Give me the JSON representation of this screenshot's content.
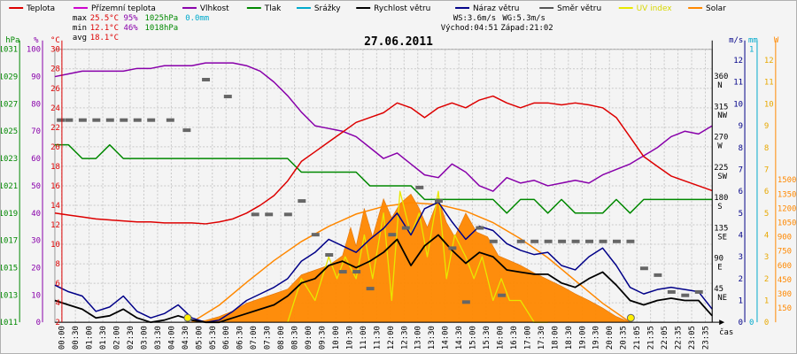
{
  "chart_data": {
    "type": "line",
    "title": "27.06.2011",
    "legend": [
      {
        "name": "Teplota",
        "color": "#dd0000"
      },
      {
        "name": "Přízemní teplota",
        "color": "#cc00cc"
      },
      {
        "name": "Vlhkost",
        "color": "#8800aa"
      },
      {
        "name": "Tlak",
        "color": "#008800"
      },
      {
        "name": "Srážky",
        "color": "#00aacc"
      },
      {
        "name": "Rychlost větru",
        "color": "#000000"
      },
      {
        "name": "Náraz větru",
        "color": "#000088"
      },
      {
        "name": "Směr větru",
        "color": "#555555"
      },
      {
        "name": "UV index",
        "color": "#e8e800"
      },
      {
        "name": "Solar",
        "color": "#ff8800"
      }
    ],
    "stats": {
      "max_label": "max",
      "max_temp": "25.5°C",
      "max_hum": "95%",
      "max_press": "1025hPa",
      "max_rain": "0.0mm",
      "min_label": "min",
      "min_temp": "12.1°C",
      "min_hum": "46%",
      "min_press": "1018hPa",
      "avg_label": "avg",
      "avg_temp": "18.1°C",
      "ws": "WS:3.6m/s",
      "wg": "WG:5.3m/s",
      "sunrise": "Východ:04:51",
      "sunset": "Západ:21:02"
    },
    "axes": {
      "hpa": {
        "unit": "hPa",
        "ticks": [
          "1011",
          "1013",
          "1015",
          "1017",
          "1019",
          "1021",
          "1023",
          "1025",
          "1027",
          "1029",
          "1031"
        ]
      },
      "pct": {
        "unit": "%",
        "ticks": [
          "0",
          "10",
          "20",
          "30",
          "40",
          "50",
          "60",
          "70",
          "80",
          "90",
          "100"
        ]
      },
      "temp": {
        "unit": "°C",
        "ticks": [
          "2",
          "4",
          "6",
          "8",
          "10",
          "12",
          "14",
          "16",
          "18",
          "20",
          "22",
          "24",
          "26",
          "28",
          "30"
        ]
      },
      "ms": {
        "unit": "m/s",
        "ticks": [
          "0",
          "1",
          "2",
          "3",
          "4",
          "5",
          "6",
          "7",
          "8",
          "9",
          "10",
          "11",
          "12"
        ]
      },
      "mm": {
        "unit": "mm",
        "ticks": [
          "0",
          "1"
        ]
      },
      "w": {
        "unit": "W",
        "ticks": [
          "150",
          "300",
          "450",
          "600",
          "750",
          "900",
          "1050",
          "1200",
          "1350",
          "1500"
        ]
      },
      "uv": {
        "ticks": [
          "0",
          "1",
          "2",
          "3",
          "4",
          "5",
          "6",
          "7",
          "8",
          "9",
          "10",
          "11",
          "12"
        ]
      },
      "dir": {
        "ticks": [
          {
            "deg": "360",
            "dir": "N",
            "v": 360
          },
          {
            "deg": "315",
            "dir": "NW",
            "v": 315
          },
          {
            "deg": "270",
            "dir": "W",
            "v": 270
          },
          {
            "deg": "225",
            "dir": "SW",
            "v": 225
          },
          {
            "deg": "180",
            "dir": "S",
            "v": 180
          },
          {
            "deg": "135",
            "dir": "SE",
            "v": 135
          },
          {
            "deg": "90",
            "dir": "E",
            "v": 90
          },
          {
            "deg": "45",
            "dir": "NE",
            "v": 45
          }
        ]
      },
      "time_label": "čas",
      "x_ticks": [
        "00:00",
        "00:30",
        "01:00",
        "01:30",
        "02:00",
        "02:30",
        "03:00",
        "03:30",
        "04:00",
        "04:30",
        "05:00",
        "05:30",
        "06:00",
        "06:30",
        "07:00",
        "07:30",
        "08:00",
        "08:30",
        "09:00",
        "09:30",
        "10:00",
        "10:30",
        "11:00",
        "11:30",
        "12:00",
        "12:30",
        "13:00",
        "13:30",
        "14:00",
        "14:30",
        "15:00",
        "15:30",
        "16:00",
        "16:30",
        "17:00",
        "17:30",
        "18:00",
        "18:30",
        "19:00",
        "19:30",
        "20:00",
        "20:35",
        "21:05",
        "21:35",
        "22:05",
        "22:35",
        "23:05",
        "23:35"
      ]
    },
    "series": {
      "teplota": {
        "x": [
          0,
          0.5,
          1,
          1.5,
          2,
          2.5,
          3,
          3.5,
          4,
          4.5,
          5,
          5.5,
          6,
          6.5,
          7,
          7.5,
          8,
          8.5,
          9,
          9.5,
          10,
          10.5,
          11,
          11.5,
          12,
          12.5,
          13,
          13.5,
          14,
          14.5,
          15,
          15.5,
          16,
          16.5,
          17,
          17.5,
          18,
          18.5,
          19,
          19.5,
          20,
          20.5,
          21,
          21.5,
          22,
          22.5,
          23,
          23.5,
          24
        ],
        "y": [
          13.2,
          13.0,
          12.8,
          12.6,
          12.5,
          12.4,
          12.3,
          12.3,
          12.2,
          12.2,
          12.2,
          12.1,
          12.3,
          12.6,
          13.2,
          14.0,
          15.0,
          16.5,
          18.5,
          19.5,
          20.5,
          21.5,
          22.5,
          23.0,
          23.5,
          24.5,
          24.0,
          23.0,
          24.0,
          24.5,
          24.0,
          24.8,
          25.2,
          24.5,
          24.0,
          24.5,
          24.5,
          24.3,
          24.5,
          24.3,
          24.0,
          23.0,
          21.0,
          19.0,
          18.0,
          17.0,
          16.5,
          16.0,
          15.5
        ]
      },
      "vlhkost": {
        "x": [
          0,
          0.5,
          1,
          1.5,
          2,
          2.5,
          3,
          3.5,
          4,
          4.5,
          5,
          5.5,
          6,
          6.5,
          7,
          7.5,
          8,
          8.5,
          9,
          9.5,
          10,
          10.5,
          11,
          11.5,
          12,
          12.5,
          13,
          13.5,
          14,
          14.5,
          15,
          15.5,
          16,
          16.5,
          17,
          17.5,
          18,
          18.5,
          19,
          19.5,
          20,
          20.5,
          21,
          21.5,
          22,
          22.5,
          23,
          23.5,
          24
        ],
        "y": [
          90,
          91,
          92,
          92,
          92,
          92,
          93,
          93,
          94,
          94,
          94,
          95,
          95,
          95,
          94,
          92,
          88,
          83,
          77,
          72,
          71,
          70,
          68,
          64,
          60,
          62,
          58,
          54,
          53,
          58,
          55,
          50,
          48,
          53,
          51,
          52,
          50,
          51,
          52,
          51,
          54,
          56,
          58,
          61,
          64,
          68,
          70,
          69,
          72
        ]
      },
      "tlak": {
        "x": [
          0,
          0.5,
          1,
          1.5,
          2,
          2.5,
          3,
          3.5,
          4,
          4.5,
          5,
          5.5,
          6,
          6.5,
          7,
          7.5,
          8,
          8.5,
          9,
          9.5,
          10,
          10.5,
          11,
          11.5,
          12,
          12.5,
          13,
          13.5,
          14,
          14.5,
          15,
          15.5,
          16,
          16.5,
          17,
          17.5,
          18,
          18.5,
          19,
          19.5,
          20,
          20.5,
          21,
          21.5,
          22,
          22.5,
          23,
          23.5,
          24
        ],
        "y": [
          1024,
          1024,
          1023,
          1023,
          1024,
          1023,
          1023,
          1023,
          1023,
          1023,
          1023,
          1023,
          1023,
          1023,
          1023,
          1023,
          1023,
          1023,
          1022,
          1022,
          1022,
          1022,
          1022,
          1021,
          1021,
          1021,
          1021,
          1020,
          1020,
          1020,
          1020,
          1020,
          1020,
          1019,
          1020,
          1020,
          1019,
          1020,
          1019,
          1019,
          1019,
          1020,
          1019,
          1020,
          1020,
          1020,
          1020,
          1020,
          1020
        ]
      },
      "rychlost": {
        "x": [
          0,
          0.5,
          1,
          1.5,
          2,
          2.5,
          3,
          3.5,
          4,
          4.5,
          5,
          5.5,
          6,
          6.5,
          7,
          7.5,
          8,
          8.5,
          9,
          9.5,
          10,
          10.5,
          11,
          11.5,
          12,
          12.5,
          13,
          13.5,
          14,
          14.5,
          15,
          15.5,
          16,
          16.5,
          17,
          17.5,
          18,
          18.5,
          19,
          19.5,
          20,
          20.5,
          21,
          21.5,
          22,
          22.5,
          23,
          23.5,
          24
        ],
        "y": [
          1.0,
          0.8,
          0.6,
          0.2,
          0.3,
          0.6,
          0.2,
          0.0,
          0.1,
          0.3,
          0.1,
          0.0,
          0.0,
          0.2,
          0.4,
          0.6,
          0.8,
          1.2,
          1.8,
          2.0,
          2.6,
          2.8,
          2.5,
          2.8,
          3.2,
          3.8,
          2.6,
          3.5,
          4.0,
          3.3,
          2.7,
          3.2,
          3.0,
          2.4,
          2.3,
          2.2,
          2.2,
          1.8,
          1.6,
          2.0,
          2.3,
          1.7,
          1.0,
          0.8,
          1.0,
          1.1,
          1.0,
          1.0,
          0.3
        ]
      },
      "naraz": {
        "x": [
          0,
          0.5,
          1,
          1.5,
          2,
          2.5,
          3,
          3.5,
          4,
          4.5,
          5,
          5.5,
          6,
          6.5,
          7,
          7.5,
          8,
          8.5,
          9,
          9.5,
          10,
          10.5,
          11,
          11.5,
          12,
          12.5,
          13,
          13.5,
          14,
          14.5,
          15,
          15.5,
          16,
          16.5,
          17,
          17.5,
          18,
          18.5,
          19,
          19.5,
          20,
          20.5,
          21,
          21.5,
          22,
          22.5,
          23,
          23.5,
          24
        ],
        "y": [
          1.7,
          1.4,
          1.2,
          0.5,
          0.7,
          1.2,
          0.5,
          0.2,
          0.4,
          0.8,
          0.2,
          0.0,
          0.1,
          0.5,
          1.0,
          1.3,
          1.6,
          2.0,
          2.8,
          3.2,
          3.8,
          3.5,
          3.2,
          3.8,
          4.3,
          5.0,
          4.0,
          5.2,
          5.5,
          4.6,
          3.8,
          4.4,
          4.2,
          3.6,
          3.3,
          3.1,
          3.2,
          2.6,
          2.4,
          3.0,
          3.4,
          2.6,
          1.6,
          1.3,
          1.5,
          1.6,
          1.5,
          1.4,
          0.6
        ]
      },
      "smer": {
        "x": [
          0.2,
          0.5,
          1,
          1.5,
          2,
          2.5,
          3,
          3.5,
          4.2,
          4.8,
          5.5,
          6.3,
          7.3,
          7.8,
          8.5,
          9.0,
          9.5,
          10,
          10.5,
          11,
          11.5,
          12.3,
          12.8,
          13.3,
          14,
          14.5,
          15,
          15.5,
          16,
          16.3,
          17,
          17.5,
          18,
          18.5,
          19,
          19.5,
          20,
          20.5,
          21,
          21.5,
          22,
          22.5,
          23,
          23.5
        ],
        "y": [
          300,
          300,
          300,
          300,
          300,
          300,
          300,
          300,
          300,
          285,
          360,
          335,
          160,
          160,
          160,
          180,
          130,
          100,
          75,
          75,
          50,
          130,
          140,
          200,
          180,
          110,
          30,
          140,
          120,
          40,
          120,
          120,
          120,
          120,
          120,
          120,
          120,
          120,
          120,
          80,
          70,
          45,
          40,
          45
        ]
      },
      "solar": {
        "x": [
          4.8,
          5.5,
          6.0,
          6.5,
          7.0,
          7.5,
          8.0,
          8.5,
          9.0,
          9.5,
          10.0,
          10.5,
          10.8,
          11.0,
          11.3,
          11.6,
          12.0,
          12.3,
          12.6,
          13.0,
          13.3,
          13.6,
          14.0,
          14.3,
          14.6,
          15.0,
          15.4,
          15.8,
          16.2,
          16.6,
          17.0,
          17.5,
          18.0,
          18.5,
          19.0,
          19.5,
          20.0,
          20.5,
          21.0
        ],
        "y": [
          0,
          20,
          60,
          120,
          200,
          250,
          300,
          350,
          500,
          550,
          600,
          700,
          1000,
          800,
          1200,
          900,
          1300,
          1100,
          1250,
          1350,
          1200,
          1000,
          1300,
          1050,
          900,
          1150,
          950,
          900,
          700,
          650,
          600,
          520,
          450,
          380,
          300,
          230,
          150,
          60,
          0
        ]
      },
      "solar_max": {
        "x": [
          5,
          6,
          7,
          8,
          9,
          10,
          11,
          12,
          13,
          14,
          15,
          16,
          17,
          18,
          19,
          20,
          21
        ],
        "y": [
          0,
          180,
          420,
          650,
          850,
          1010,
          1140,
          1220,
          1260,
          1240,
          1170,
          1050,
          880,
          680,
          440,
          200,
          0
        ]
      },
      "uv": {
        "x": [
          8.5,
          9,
          9.5,
          10,
          10.3,
          10.6,
          11,
          11.3,
          11.6,
          12,
          12.3,
          12.6,
          13,
          13.3,
          13.6,
          14,
          14.3,
          14.6,
          15,
          15.3,
          15.6,
          16,
          16.3,
          16.6,
          17,
          17.5,
          18
        ],
        "y": [
          0,
          2,
          1,
          3,
          2,
          3,
          2,
          4,
          2,
          5,
          1,
          6,
          4,
          5,
          3,
          6,
          2,
          4,
          3,
          2,
          3,
          1,
          2,
          1,
          1,
          0,
          0
        ]
      }
    },
    "sun_markers": {
      "sunrise_h": 4.85,
      "sunset_h": 21.03
    }
  }
}
